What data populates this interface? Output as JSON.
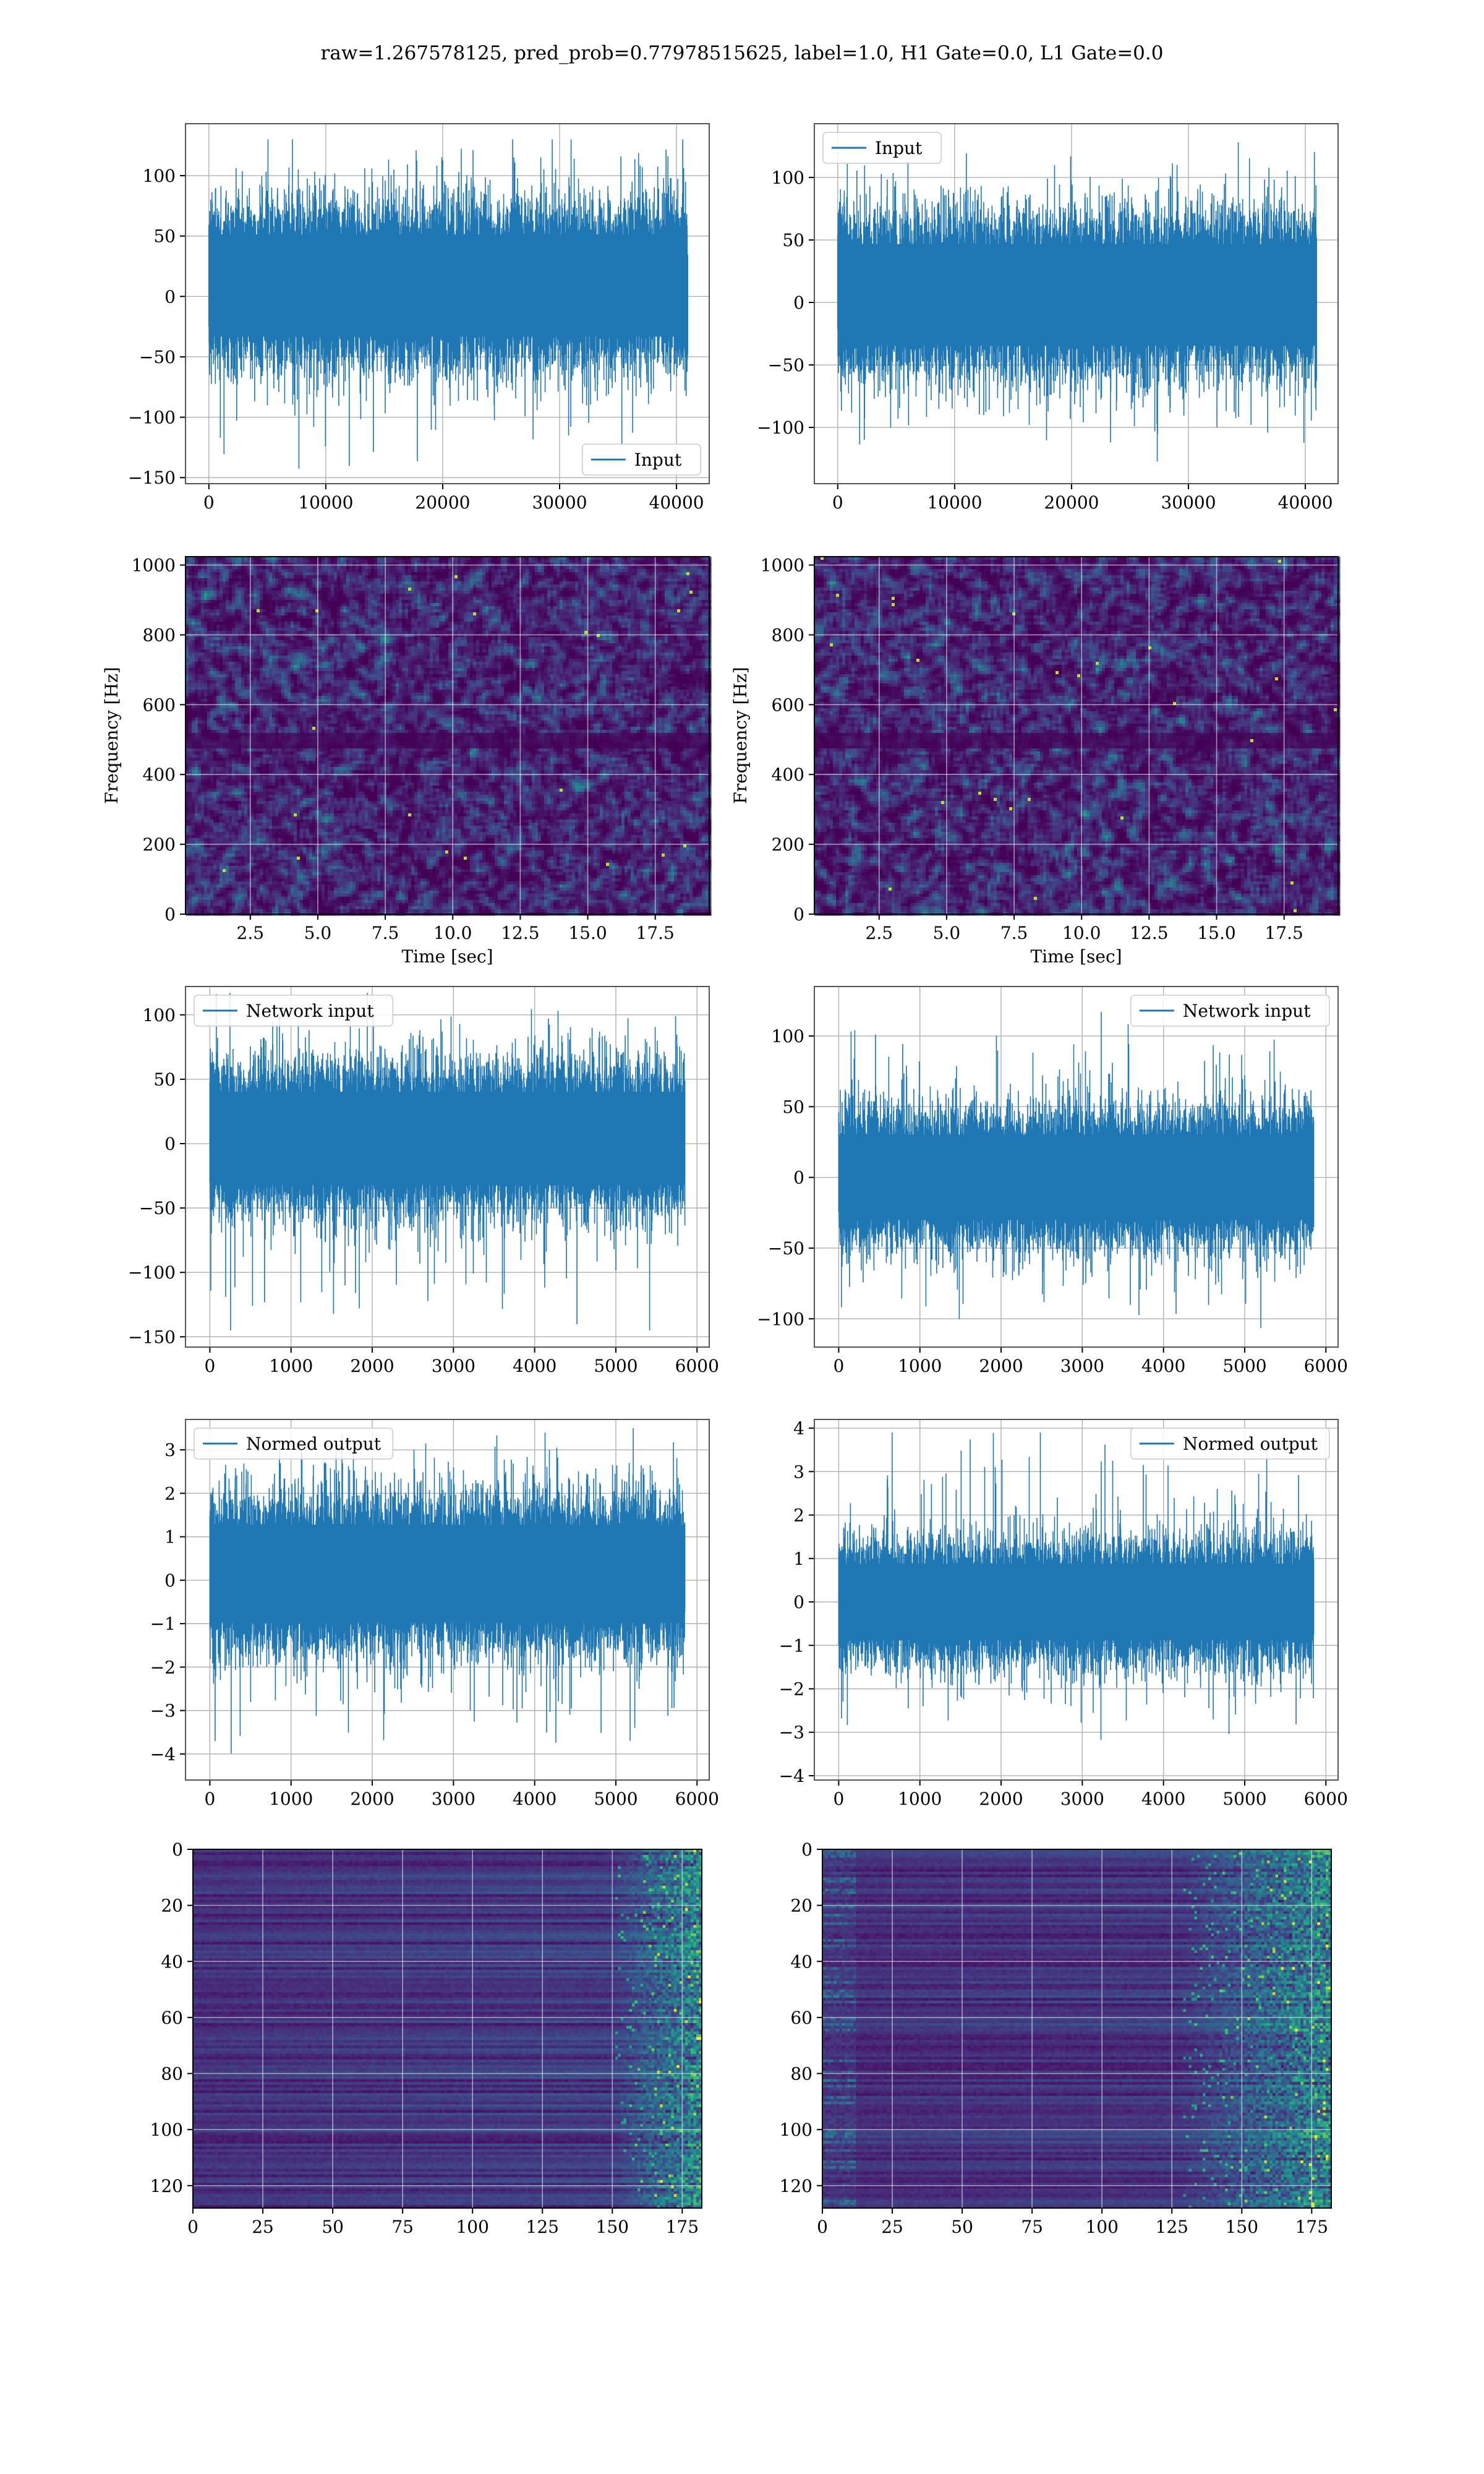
{
  "title": "raw=1.267578125, pred_prob=0.77978515625, label=1.0, H1 Gate=0.0, L1 Gate=0.0",
  "colors": {
    "line": "#1f77b4",
    "grid": "#b0b0b0",
    "viridis_low": "#440154",
    "viridis_mid": "#21918c",
    "viridis_high": "#fde725"
  },
  "chart_data": [
    {
      "id": "h1-input",
      "type": "line",
      "signal": "noise",
      "legend": "Input",
      "legend_loc": "lower-right",
      "xlim": [
        -2000,
        42800
      ],
      "ylim": [
        -155,
        143
      ],
      "xticks": [
        0,
        10000,
        20000,
        30000,
        40000
      ],
      "yticks": [
        -150,
        -100,
        -50,
        0,
        50,
        100
      ],
      "x_extent": [
        0,
        40960
      ],
      "n_samples": 40960,
      "envelope": {
        "p99_low": -68,
        "p99_high": 86,
        "min": -150,
        "max": 130
      },
      "grid": true,
      "xlabel": "",
      "ylabel": ""
    },
    {
      "id": "l1-input",
      "type": "line",
      "signal": "noise",
      "legend": "Input",
      "legend_loc": "upper-left",
      "xlim": [
        -2000,
        42800
      ],
      "ylim": [
        -145,
        143
      ],
      "xticks": [
        0,
        10000,
        20000,
        30000,
        40000
      ],
      "yticks": [
        -100,
        -50,
        0,
        50,
        100
      ],
      "x_extent": [
        0,
        40960
      ],
      "n_samples": 40960,
      "envelope": {
        "p99_low": -68,
        "p99_high": 80,
        "min": -132,
        "max": 135
      },
      "grid": true,
      "xlabel": "",
      "ylabel": ""
    },
    {
      "id": "h1-spectrogram",
      "type": "heatmap",
      "colormap": "viridis",
      "xlim": [
        0.1,
        19.5
      ],
      "ylim": [
        0,
        1024
      ],
      "xticks": [
        2.5,
        5.0,
        7.5,
        10.0,
        12.5,
        15.0,
        17.5
      ],
      "yticks": [
        0,
        200,
        400,
        600,
        800,
        1000
      ],
      "xlabel": "Time [sec]",
      "ylabel": "Frequency [Hz]",
      "dark_band_hz": [
        480,
        520
      ],
      "grid": true
    },
    {
      "id": "l1-spectrogram",
      "type": "heatmap",
      "colormap": "viridis",
      "xlim": [
        0.1,
        19.5
      ],
      "ylim": [
        0,
        1024
      ],
      "xticks": [
        2.5,
        5.0,
        7.5,
        10.0,
        12.5,
        15.0,
        17.5
      ],
      "yticks": [
        0,
        200,
        400,
        600,
        800,
        1000
      ],
      "xlabel": "Time [sec]",
      "ylabel": "Frequency [Hz]",
      "dark_band_hz": [
        480,
        520
      ],
      "grid": true
    },
    {
      "id": "h1-network-input",
      "type": "line",
      "signal": "noise",
      "legend": "Network input",
      "legend_loc": "upper-left",
      "xlim": [
        -300,
        6150
      ],
      "ylim": [
        -158,
        122
      ],
      "xticks": [
        0,
        1000,
        2000,
        3000,
        4000,
        5000,
        6000
      ],
      "yticks": [
        -150,
        -100,
        -50,
        0,
        50,
        100
      ],
      "x_extent": [
        0,
        5850
      ],
      "n_samples": 5850,
      "envelope": {
        "p99_low": -62,
        "p99_high": 70,
        "min": -145,
        "max": 117
      },
      "grid": true,
      "xlabel": "",
      "ylabel": ""
    },
    {
      "id": "l1-network-input",
      "type": "line",
      "signal": "noise",
      "legend": "Network input",
      "legend_loc": "upper-right",
      "xlim": [
        -300,
        6150
      ],
      "ylim": [
        -120,
        135
      ],
      "xticks": [
        0,
        1000,
        2000,
        3000,
        4000,
        5000,
        6000
      ],
      "yticks": [
        -100,
        -50,
        0,
        50,
        100
      ],
      "x_extent": [
        0,
        5850
      ],
      "n_samples": 5850,
      "envelope": {
        "p99_low": -55,
        "p99_high": 55,
        "min": -112,
        "max": 128
      },
      "grid": true,
      "xlabel": "",
      "ylabel": ""
    },
    {
      "id": "h1-normed-output",
      "type": "line",
      "signal": "noise",
      "legend": "Normed output",
      "legend_loc": "upper-left",
      "xlim": [
        -300,
        6150
      ],
      "ylim": [
        -4.6,
        3.7
      ],
      "xticks": [
        0,
        1000,
        2000,
        3000,
        4000,
        5000,
        6000
      ],
      "yticks": [
        -4,
        -3,
        -2,
        -1,
        0,
        1,
        2,
        3
      ],
      "x_extent": [
        0,
        5850
      ],
      "n_samples": 5850,
      "envelope": {
        "p99_low": -1.9,
        "p99_high": 2.2,
        "min": -4.4,
        "max": 3.5
      },
      "grid": true,
      "xlabel": "",
      "ylabel": ""
    },
    {
      "id": "l1-normed-output",
      "type": "line",
      "signal": "noise",
      "legend": "Normed output",
      "legend_loc": "upper-right",
      "xlim": [
        -300,
        6150
      ],
      "ylim": [
        -4.1,
        4.2
      ],
      "xticks": [
        0,
        1000,
        2000,
        3000,
        4000,
        5000,
        6000
      ],
      "yticks": [
        -4,
        -3,
        -2,
        -1,
        0,
        1,
        2,
        3,
        4
      ],
      "x_extent": [
        0,
        5850
      ],
      "n_samples": 5850,
      "envelope": {
        "p99_low": -1.6,
        "p99_high": 1.6,
        "min": -3.4,
        "max": 3.9
      },
      "grid": true,
      "xlabel": "",
      "ylabel": ""
    },
    {
      "id": "h1-feature-map",
      "type": "heatmap",
      "colormap": "viridis",
      "xlim": [
        0,
        182
      ],
      "ylim": [
        128,
        0
      ],
      "xticks": [
        0,
        25,
        50,
        75,
        100,
        125,
        150,
        175
      ],
      "yticks": [
        0,
        20,
        40,
        60,
        80,
        100,
        120
      ],
      "activity_onset_col": 150,
      "grid": true,
      "xlabel": "",
      "ylabel": ""
    },
    {
      "id": "l1-feature-map",
      "type": "heatmap",
      "colormap": "viridis",
      "xlim": [
        0,
        182
      ],
      "ylim": [
        128,
        0
      ],
      "xticks": [
        0,
        25,
        50,
        75,
        100,
        125,
        150,
        175
      ],
      "yticks": [
        0,
        20,
        40,
        60,
        80,
        100,
        120
      ],
      "activity_onset_col": 128,
      "grid": true,
      "xlabel": "",
      "ylabel": ""
    }
  ]
}
